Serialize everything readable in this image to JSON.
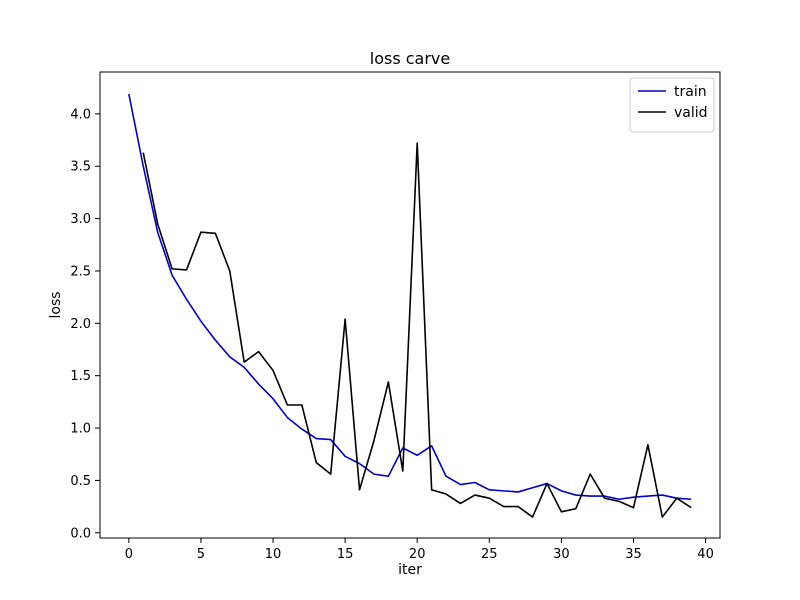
{
  "chart_data": {
    "type": "line",
    "title": "loss carve",
    "xlabel": "iter",
    "ylabel": "loss",
    "xlim": [
      -2,
      41
    ],
    "ylim": [
      -0.05,
      4.4
    ],
    "xticks": [
      0,
      5,
      10,
      15,
      20,
      25,
      30,
      35,
      40
    ],
    "xtick_labels": [
      "0",
      "5",
      "10",
      "15",
      "20",
      "25",
      "30",
      "35",
      "40"
    ],
    "yticks": [
      0.0,
      0.5,
      1.0,
      1.5,
      2.0,
      2.5,
      3.0,
      3.5,
      4.0
    ],
    "ytick_labels": [
      "0.0",
      "0.5",
      "1.0",
      "1.5",
      "2.0",
      "2.5",
      "3.0",
      "3.5",
      "4.0"
    ],
    "grid": false,
    "legend_position": "top-right",
    "series": [
      {
        "name": "train",
        "color": "#0000cc",
        "x": [
          0,
          1,
          2,
          3,
          4,
          5,
          6,
          7,
          8,
          9,
          10,
          11,
          12,
          13,
          14,
          15,
          16,
          17,
          18,
          19,
          20,
          21,
          22,
          23,
          24,
          25,
          26,
          27,
          28,
          29,
          30,
          31,
          32,
          33,
          34,
          35,
          36,
          37,
          38,
          39
        ],
        "values": [
          4.19,
          3.5,
          2.87,
          2.46,
          2.23,
          2.02,
          1.84,
          1.68,
          1.58,
          1.42,
          1.28,
          1.1,
          0.99,
          0.9,
          0.89,
          0.73,
          0.66,
          0.56,
          0.54,
          0.81,
          0.74,
          0.83,
          0.54,
          0.46,
          0.48,
          0.41,
          0.4,
          0.39,
          0.43,
          0.47,
          0.4,
          0.36,
          0.35,
          0.35,
          0.32,
          0.34,
          0.35,
          0.36,
          0.33,
          0.32
        ]
      },
      {
        "name": "valid",
        "color": "#000000",
        "x": [
          1,
          2,
          3,
          4,
          5,
          6,
          7,
          8,
          9,
          10,
          11,
          12,
          13,
          14,
          15,
          16,
          17,
          18,
          19,
          20,
          21,
          22,
          23,
          24,
          25,
          26,
          27,
          28,
          29,
          30,
          31,
          32,
          33,
          34,
          35,
          36,
          37,
          38,
          39
        ],
        "values": [
          3.63,
          2.95,
          2.52,
          2.51,
          2.87,
          2.86,
          2.5,
          1.63,
          1.73,
          1.55,
          1.22,
          1.22,
          0.67,
          0.56,
          2.04,
          0.41,
          0.88,
          1.44,
          0.59,
          3.72,
          0.41,
          0.37,
          0.28,
          0.36,
          0.33,
          0.25,
          0.25,
          0.15,
          0.47,
          0.2,
          0.23,
          0.56,
          0.33,
          0.3,
          0.24,
          0.84,
          0.15,
          0.33,
          0.24
        ]
      }
    ]
  }
}
